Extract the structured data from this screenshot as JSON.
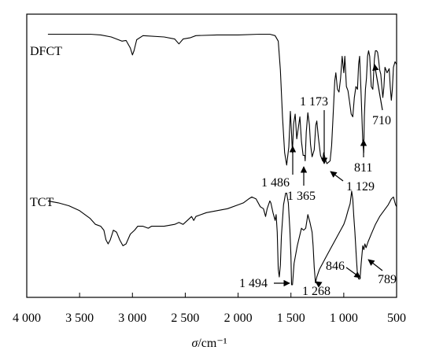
{
  "chart_data": {
    "type": "line",
    "title": "",
    "xlabel_symbol": "σ",
    "xlabel_unit": "/cm⁻¹",
    "ylabel": "",
    "xlim": [
      4000,
      500
    ],
    "x_axis_reversed": true,
    "y_axis": "none",
    "grid": false,
    "legend": "none",
    "x_ticks": [
      {
        "value": 4000,
        "label": "4 000"
      },
      {
        "value": 3500,
        "label": "3 500"
      },
      {
        "value": 3000,
        "label": "3 000"
      },
      {
        "value": 2500,
        "label": "2 500"
      },
      {
        "value": 2000,
        "label": "2 000"
      },
      {
        "value": 1500,
        "label": "1 500"
      },
      {
        "value": 1000,
        "label": "1 000"
      },
      {
        "value": 500,
        "label": "500"
      }
    ],
    "series": [
      {
        "name": "DFCT",
        "y_unit": "relative transmittance",
        "points": [
          [
            3800,
            0.98
          ],
          [
            3400,
            0.98
          ],
          [
            3300,
            0.975
          ],
          [
            3200,
            0.96
          ],
          [
            3100,
            0.93
          ],
          [
            3060,
            0.935
          ],
          [
            3020,
            0.88
          ],
          [
            3000,
            0.83
          ],
          [
            2985,
            0.86
          ],
          [
            2960,
            0.94
          ],
          [
            2900,
            0.97
          ],
          [
            2700,
            0.96
          ],
          [
            2600,
            0.945
          ],
          [
            2560,
            0.91
          ],
          [
            2520,
            0.945
          ],
          [
            2450,
            0.955
          ],
          [
            2400,
            0.97
          ],
          [
            2200,
            0.975
          ],
          [
            2000,
            0.975
          ],
          [
            1800,
            0.98
          ],
          [
            1700,
            0.98
          ],
          [
            1650,
            0.97
          ],
          [
            1620,
            0.93
          ],
          [
            1600,
            0.72
          ],
          [
            1580,
            0.38
          ],
          [
            1560,
            0.12
          ],
          [
            1540,
            0.03
          ],
          [
            1520,
            0.16
          ],
          [
            1505,
            0.42
          ],
          [
            1495,
            0.27
          ],
          [
            1486,
            0.12
          ],
          [
            1475,
            0.33
          ],
          [
            1460,
            0.4
          ],
          [
            1445,
            0.22
          ],
          [
            1430,
            0.3
          ],
          [
            1415,
            0.38
          ],
          [
            1400,
            0.2
          ],
          [
            1385,
            0.1
          ],
          [
            1370,
            0.1
          ],
          [
            1365,
            0.06
          ],
          [
            1355,
            0.27
          ],
          [
            1340,
            0.41
          ],
          [
            1325,
            0.32
          ],
          [
            1315,
            0.18
          ],
          [
            1300,
            0.09
          ],
          [
            1280,
            0.14
          ],
          [
            1265,
            0.32
          ],
          [
            1255,
            0.35
          ],
          [
            1240,
            0.23
          ],
          [
            1220,
            0.1
          ],
          [
            1200,
            0.06
          ],
          [
            1190,
            0.12
          ],
          [
            1173,
            0.07
          ],
          [
            1160,
            0.04
          ],
          [
            1145,
            0.05
          ],
          [
            1129,
            0.06
          ],
          [
            1115,
            0.17
          ],
          [
            1100,
            0.4
          ],
          [
            1085,
            0.64
          ],
          [
            1075,
            0.7
          ],
          [
            1060,
            0.58
          ],
          [
            1045,
            0.56
          ],
          [
            1030,
            0.66
          ],
          [
            1015,
            0.82
          ],
          [
            1000,
            0.7
          ],
          [
            990,
            0.82
          ],
          [
            975,
            0.6
          ],
          [
            960,
            0.57
          ],
          [
            945,
            0.49
          ],
          [
            930,
            0.4
          ],
          [
            915,
            0.38
          ],
          [
            900,
            0.52
          ],
          [
            885,
            0.6
          ],
          [
            870,
            0.58
          ],
          [
            860,
            0.76
          ],
          [
            850,
            0.82
          ],
          [
            835,
            0.53
          ],
          [
            820,
            0.2
          ],
          [
            811,
            0.12
          ],
          [
            805,
            0.38
          ],
          [
            795,
            0.58
          ],
          [
            785,
            0.66
          ],
          [
            775,
            0.82
          ],
          [
            765,
            0.86
          ],
          [
            755,
            0.82
          ],
          [
            740,
            0.6
          ],
          [
            725,
            0.58
          ],
          [
            710,
            0.8
          ],
          [
            700,
            0.86
          ],
          [
            690,
            0.86
          ],
          [
            680,
            0.85
          ],
          [
            670,
            0.79
          ],
          [
            660,
            0.72
          ],
          [
            650,
            0.69
          ],
          [
            640,
            0.6
          ],
          [
            630,
            0.52
          ],
          [
            620,
            0.6
          ],
          [
            610,
            0.74
          ],
          [
            590,
            0.7
          ],
          [
            570,
            0.73
          ],
          [
            560,
            0.6
          ],
          [
            550,
            0.5
          ],
          [
            540,
            0.58
          ],
          [
            530,
            0.74
          ],
          [
            515,
            0.78
          ],
          [
            500,
            0.76
          ]
        ]
      },
      {
        "name": "TCT",
        "y_unit": "relative transmittance",
        "points": [
          [
            3800,
            0.9
          ],
          [
            3700,
            0.88
          ],
          [
            3600,
            0.85
          ],
          [
            3500,
            0.8
          ],
          [
            3450,
            0.76
          ],
          [
            3400,
            0.72
          ],
          [
            3350,
            0.66
          ],
          [
            3300,
            0.64
          ],
          [
            3270,
            0.6
          ],
          [
            3250,
            0.5
          ],
          [
            3230,
            0.46
          ],
          [
            3210,
            0.5
          ],
          [
            3180,
            0.6
          ],
          [
            3150,
            0.58
          ],
          [
            3120,
            0.5
          ],
          [
            3090,
            0.44
          ],
          [
            3060,
            0.46
          ],
          [
            3020,
            0.56
          ],
          [
            2980,
            0.6
          ],
          [
            2950,
            0.64
          ],
          [
            2900,
            0.64
          ],
          [
            2850,
            0.62
          ],
          [
            2820,
            0.64
          ],
          [
            2700,
            0.64
          ],
          [
            2600,
            0.66
          ],
          [
            2560,
            0.68
          ],
          [
            2520,
            0.66
          ],
          [
            2480,
            0.7
          ],
          [
            2440,
            0.74
          ],
          [
            2420,
            0.7
          ],
          [
            2400,
            0.74
          ],
          [
            2300,
            0.78
          ],
          [
            2200,
            0.8
          ],
          [
            2100,
            0.82
          ],
          [
            2000,
            0.86
          ],
          [
            1950,
            0.88
          ],
          [
            1900,
            0.92
          ],
          [
            1870,
            0.94
          ],
          [
            1830,
            0.92
          ],
          [
            1790,
            0.84
          ],
          [
            1760,
            0.82
          ],
          [
            1740,
            0.74
          ],
          [
            1725,
            0.82
          ],
          [
            1700,
            0.9
          ],
          [
            1690,
            0.88
          ],
          [
            1670,
            0.78
          ],
          [
            1650,
            0.7
          ],
          [
            1640,
            0.76
          ],
          [
            1630,
            0.58
          ],
          [
            1620,
            0.2
          ],
          [
            1610,
            0.12
          ],
          [
            1600,
            0.24
          ],
          [
            1590,
            0.54
          ],
          [
            1570,
            0.86
          ],
          [
            1550,
            0.98
          ],
          [
            1540,
            0.98
          ],
          [
            1525,
            0.88
          ],
          [
            1510,
            0.6
          ],
          [
            1500,
            0.34
          ],
          [
            1494,
            0.04
          ],
          [
            1485,
            0.04
          ],
          [
            1470,
            0.26
          ],
          [
            1440,
            0.44
          ],
          [
            1400,
            0.62
          ],
          [
            1380,
            0.6
          ],
          [
            1360,
            0.62
          ],
          [
            1340,
            0.76
          ],
          [
            1320,
            0.68
          ],
          [
            1300,
            0.58
          ],
          [
            1290,
            0.44
          ],
          [
            1280,
            0.22
          ],
          [
            1268,
            0.06
          ],
          [
            1255,
            0.12
          ],
          [
            1230,
            0.2
          ],
          [
            1200,
            0.26
          ],
          [
            1170,
            0.32
          ],
          [
            1120,
            0.42
          ],
          [
            1080,
            0.5
          ],
          [
            1050,
            0.56
          ],
          [
            1020,
            0.62
          ],
          [
            1000,
            0.66
          ],
          [
            980,
            0.72
          ],
          [
            960,
            0.8
          ],
          [
            940,
            0.87
          ],
          [
            925,
            1.0
          ],
          [
            915,
            0.92
          ],
          [
            905,
            0.74
          ],
          [
            895,
            0.58
          ],
          [
            880,
            0.3
          ],
          [
            870,
            0.14
          ],
          [
            860,
            0.1
          ],
          [
            846,
            0.1
          ],
          [
            835,
            0.26
          ],
          [
            820,
            0.44
          ],
          [
            810,
            0.4
          ],
          [
            800,
            0.46
          ],
          [
            789,
            0.42
          ],
          [
            770,
            0.48
          ],
          [
            740,
            0.56
          ],
          [
            700,
            0.66
          ],
          [
            660,
            0.74
          ],
          [
            620,
            0.8
          ],
          [
            580,
            0.86
          ],
          [
            550,
            0.92
          ],
          [
            530,
            0.94
          ],
          [
            520,
            0.9
          ],
          [
            510,
            0.86
          ],
          [
            500,
            0.84
          ]
        ]
      }
    ],
    "peak_labels": [
      {
        "series": "DFCT",
        "label": "1 486",
        "x": 1486
      },
      {
        "series": "DFCT",
        "label": "1 365",
        "x": 1365
      },
      {
        "series": "DFCT",
        "label": "1 173",
        "x": 1173
      },
      {
        "series": "DFCT",
        "label": "1 129",
        "x": 1129
      },
      {
        "series": "DFCT",
        "label": "811",
        "x": 811
      },
      {
        "series": "DFCT",
        "label": "710",
        "x": 710
      },
      {
        "series": "TCT",
        "label": "1 494",
        "x": 1494
      },
      {
        "series": "TCT",
        "label": "1 268",
        "x": 1268
      },
      {
        "series": "TCT",
        "label": "846",
        "x": 846
      },
      {
        "series": "TCT",
        "label": "789",
        "x": 789
      }
    ]
  }
}
